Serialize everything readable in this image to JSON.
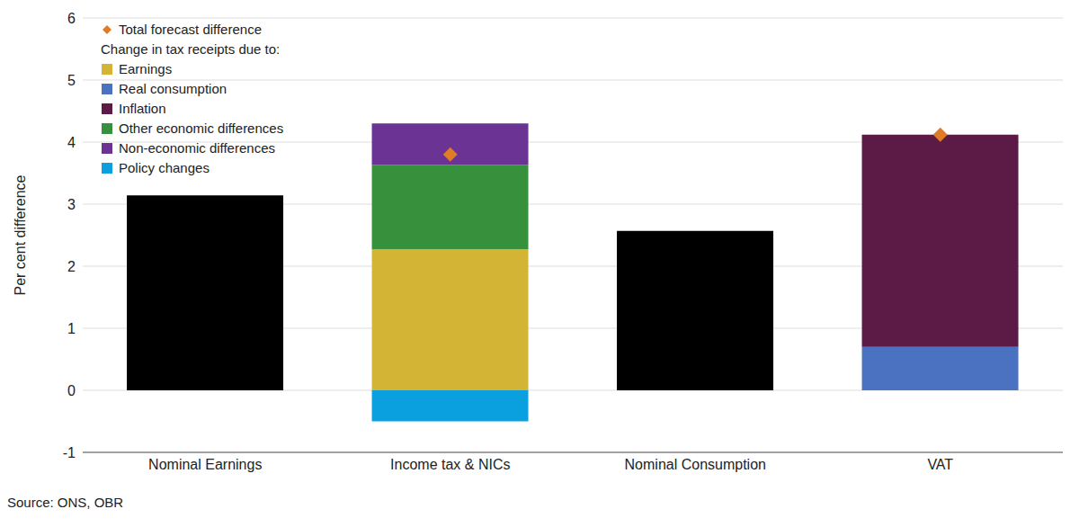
{
  "chart_data": {
    "type": "bar",
    "stacked": true,
    "grid": true,
    "legend": "top-left",
    "legend_title": "Change in tax receipts due to:",
    "y_label": "Per cent difference",
    "source": "Source: ONS, OBR",
    "categories": [
      "Nominal Earnings",
      "Income tax & NICs",
      "Nominal Consumption",
      "VAT"
    ],
    "ylim": [
      -1,
      6
    ],
    "yticks": [
      -1,
      0,
      1,
      2,
      3,
      4,
      5,
      6
    ],
    "series": [
      {
        "name": "Total forecast difference",
        "type": "scatter",
        "marker": "diamond",
        "color": "#e07b28",
        "values": [
          null,
          3.8,
          null,
          4.12
        ]
      },
      {
        "color": "#000000",
        "values": [
          3.14,
          null,
          2.57,
          null
        ]
      },
      {
        "name": "Earnings",
        "color": "#d4b435",
        "values": [
          null,
          2.27,
          null,
          null
        ]
      },
      {
        "name": "Real consumption",
        "color": "#4a72c0",
        "values": [
          null,
          null,
          null,
          0.7
        ]
      },
      {
        "name": "Inflation",
        "color": "#5c1a47",
        "values": [
          null,
          null,
          null,
          3.42
        ]
      },
      {
        "name": "Other economic differences",
        "color": "#37913c",
        "values": [
          null,
          1.36,
          null,
          null
        ]
      },
      {
        "name": "Non-economic differences",
        "color": "#6a3394",
        "values": [
          null,
          0.67,
          null,
          null
        ]
      },
      {
        "name": "Policy changes",
        "color": "#0aa0e0",
        "values": [
          null,
          -0.5,
          null,
          null
        ]
      }
    ]
  }
}
